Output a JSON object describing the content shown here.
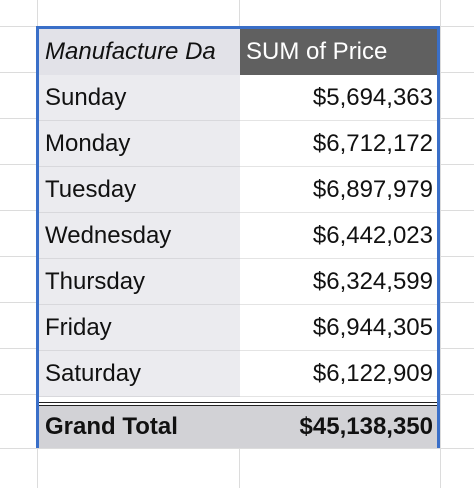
{
  "pivot_table": {
    "header": {
      "row_field": "Manufacture Da",
      "value_field": "SUM of Price"
    },
    "rows": [
      {
        "label": "Sunday",
        "value": "$5,694,363"
      },
      {
        "label": "Monday",
        "value": "$6,712,172"
      },
      {
        "label": "Tuesday",
        "value": "$6,897,979"
      },
      {
        "label": "Wednesday",
        "value": "$6,442,023"
      },
      {
        "label": "Thursday",
        "value": "$6,324,599"
      },
      {
        "label": "Friday",
        "value": "$6,944,305"
      },
      {
        "label": "Saturday",
        "value": "$6,122,909"
      }
    ],
    "total": {
      "label": "Grand Total",
      "value": "$45,138,350"
    }
  },
  "colors": {
    "selection_border": "#3a6fc8",
    "header_value_bg": "#606060",
    "header_label_bg": "#e2e2e8",
    "row_label_bg": "#ebebef",
    "total_bg": "#d2d2d6"
  }
}
